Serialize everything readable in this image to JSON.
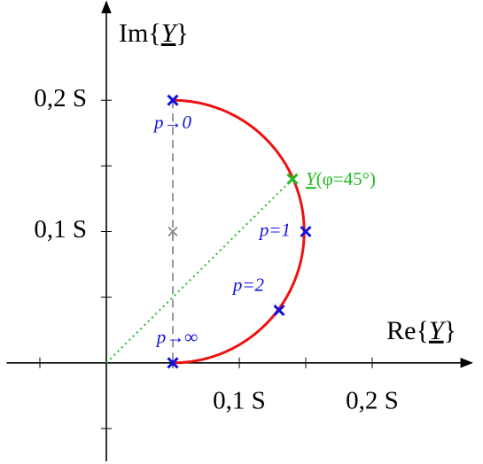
{
  "chart_data": {
    "type": "locus",
    "xlabel_parts": [
      "Re{",
      "Y",
      "}"
    ],
    "ylabel_parts": [
      "Im{",
      "Y",
      "}"
    ],
    "xlim": [
      -0.075,
      0.275
    ],
    "ylim": [
      -0.075,
      0.275
    ],
    "xticks": [
      {
        "value": 0.1,
        "label": "0,1 S"
      },
      {
        "value": 0.2,
        "label": "0,2 S"
      }
    ],
    "yticks": [
      {
        "value": 0.1,
        "label": "0,1 S"
      },
      {
        "value": 0.2,
        "label": "0,2 S"
      }
    ],
    "minor_xticks": [
      -0.05,
      0.05,
      0.15
    ],
    "minor_yticks": [
      -0.05,
      0.05,
      0.15
    ],
    "locus_color": "#ee1111",
    "point_color": "#1111dd",
    "points": [
      {
        "label": "p→0",
        "x": 0.05,
        "y": 0.2
      },
      {
        "label": "p=1",
        "x": 0.15,
        "y": 0.1
      },
      {
        "label": "p=2",
        "x": 0.13,
        "y": 0.04
      },
      {
        "label": "p→∞",
        "x": 0.05,
        "y": 0
      }
    ],
    "center": {
      "x": 0.05,
      "y": 0.1,
      "color": "#888888"
    },
    "highlight": {
      "label_parts": [
        "Y",
        "(φ=45°)"
      ],
      "x": 0.14,
      "y": 0.14,
      "color": "#22bb22"
    }
  }
}
